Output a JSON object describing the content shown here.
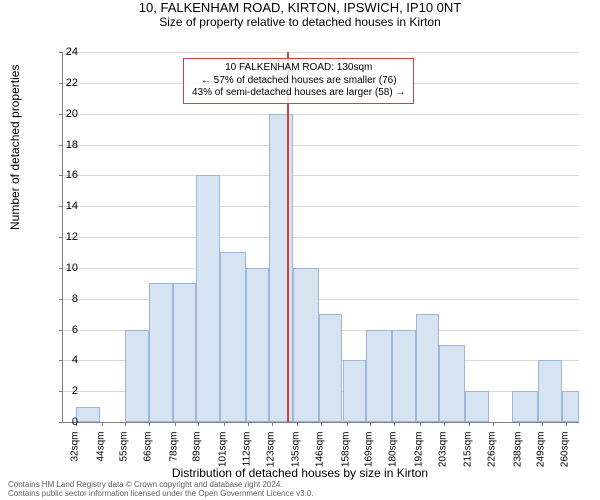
{
  "title": "10, FALKENHAM ROAD, KIRTON, IPSWICH, IP10 0NT",
  "subtitle": "Size of property relative to detached houses in Kirton",
  "ylabel": "Number of detached properties",
  "xlabel": "Distribution of detached houses by size in Kirton",
  "footer_line1": "Contains HM Land Registry data © Crown copyright and database right 2024.",
  "footer_line2": "Contains public sector information licensed under the Open Government Licence v3.0.",
  "chart": {
    "type": "histogram",
    "ylim": [
      0,
      24
    ],
    "xlim": [
      26,
      266
    ],
    "yticks": [
      0,
      2,
      4,
      6,
      8,
      10,
      12,
      14,
      16,
      18,
      20,
      22,
      24
    ],
    "xticks": [
      32,
      44,
      55,
      66,
      78,
      89,
      101,
      112,
      123,
      135,
      146,
      158,
      169,
      180,
      192,
      203,
      215,
      226,
      238,
      249,
      260
    ],
    "xtick_suffix": "sqm",
    "bar_fill": "#d6e4f2",
    "bar_stroke": "#9cb8d8",
    "grid_color": "#d9d9d9",
    "axis_color": "#808080",
    "background_color": "#ffffff",
    "title_fontsize": 13,
    "label_fontsize": 12,
    "tick_fontsize": 11,
    "marker": {
      "x": 130,
      "color": "#d04040",
      "box_lines": [
        "10 FALKENHAM ROAD: 130sqm",
        "← 57% of detached houses are smaller (76)",
        "43% of semi-detached houses are larger (58) →"
      ]
    },
    "bars": [
      {
        "x0": 32,
        "x1": 43,
        "y": 1
      },
      {
        "x0": 55,
        "x1": 66,
        "y": 6
      },
      {
        "x0": 66,
        "x1": 77,
        "y": 9
      },
      {
        "x0": 77,
        "x1": 88,
        "y": 9
      },
      {
        "x0": 88,
        "x1": 99,
        "y": 16
      },
      {
        "x0": 99,
        "x1": 111,
        "y": 11
      },
      {
        "x0": 111,
        "x1": 122,
        "y": 10
      },
      {
        "x0": 122,
        "x1": 133,
        "y": 20
      },
      {
        "x0": 133,
        "x1": 145,
        "y": 10
      },
      {
        "x0": 145,
        "x1": 156,
        "y": 7
      },
      {
        "x0": 156,
        "x1": 167,
        "y": 4
      },
      {
        "x0": 167,
        "x1": 179,
        "y": 6
      },
      {
        "x0": 179,
        "x1": 190,
        "y": 6
      },
      {
        "x0": 190,
        "x1": 201,
        "y": 7
      },
      {
        "x0": 201,
        "x1": 213,
        "y": 5
      },
      {
        "x0": 213,
        "x1": 224,
        "y": 2
      },
      {
        "x0": 235,
        "x1": 247,
        "y": 2
      },
      {
        "x0": 247,
        "x1": 258,
        "y": 4
      },
      {
        "x0": 258,
        "x1": 266,
        "y": 2
      }
    ]
  }
}
